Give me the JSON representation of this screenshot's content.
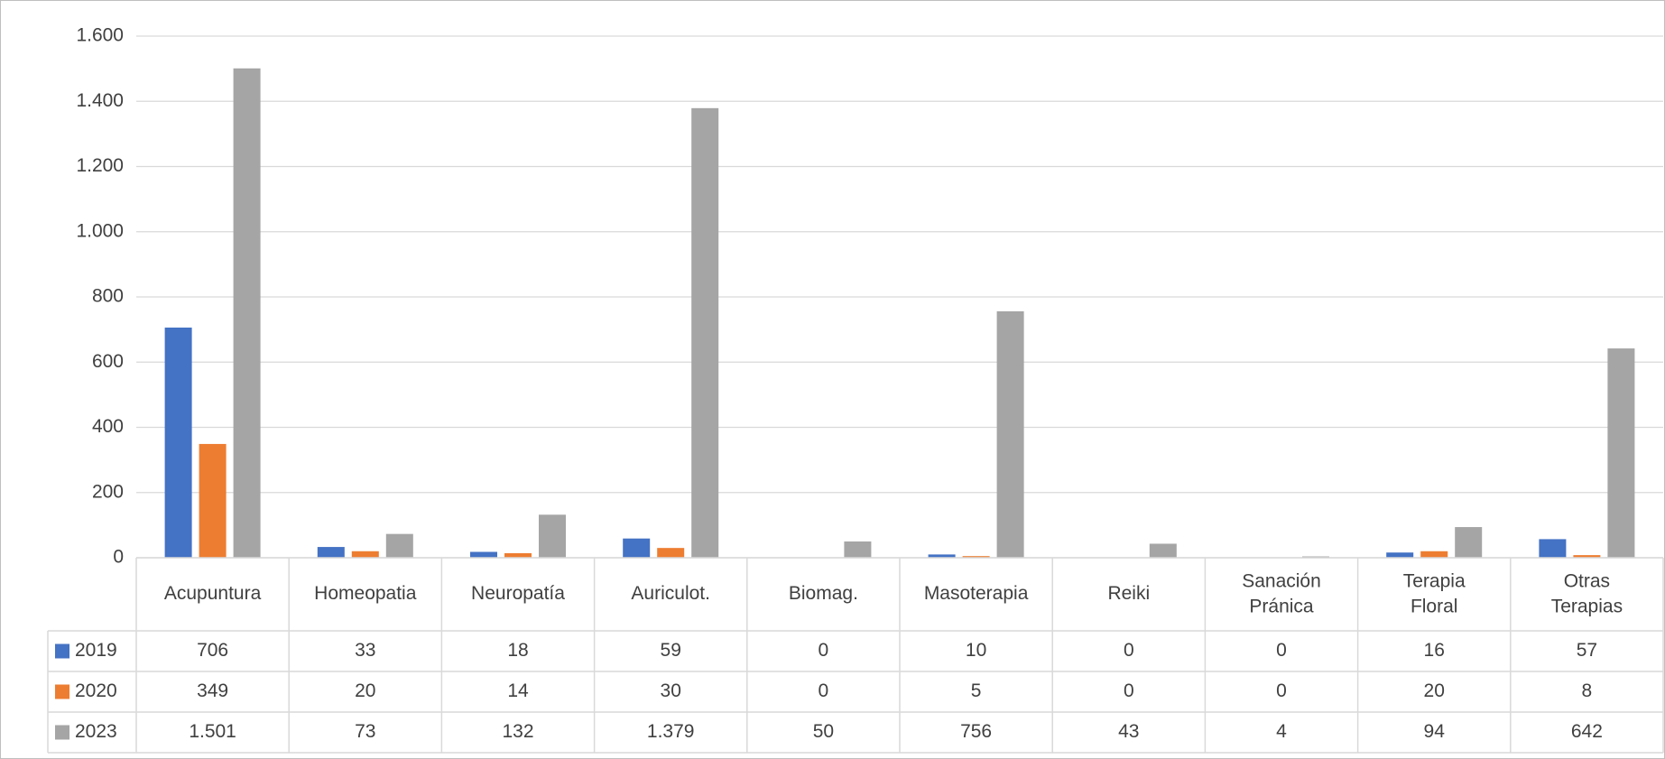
{
  "chart_data": {
    "type": "bar",
    "categories": [
      "Acupuntura",
      "Homeopatia",
      "Neuropatía",
      "Auriculot.",
      "Biomag.",
      "Masoterapia",
      "Reiki",
      "Sanación Pránica",
      "Terapia Floral",
      "Otras Terapias"
    ],
    "series": [
      {
        "name": "2019",
        "color": "#4472c4",
        "values": [
          706,
          33,
          18,
          59,
          0,
          10,
          0,
          0,
          16,
          57
        ]
      },
      {
        "name": "2020",
        "color": "#ed7d31",
        "values": [
          349,
          20,
          14,
          30,
          0,
          5,
          0,
          0,
          20,
          8
        ]
      },
      {
        "name": "2023",
        "color": "#a5a5a5",
        "values": [
          1501,
          73,
          132,
          1379,
          50,
          756,
          43,
          4,
          94,
          642
        ],
        "value_labels": [
          "1.501",
          "73",
          "132",
          "1.379",
          "50",
          "756",
          "43",
          "4",
          "94",
          "642"
        ]
      }
    ],
    "ylim": [
      0,
      1600
    ],
    "yticks": [
      0,
      200,
      400,
      600,
      800,
      {
        "value": 1000,
        "label": "1.000"
      },
      {
        "value": 1200,
        "label": "1.200"
      },
      {
        "value": 1400,
        "label": "1.400"
      },
      {
        "value": 1600,
        "label": "1.600"
      }
    ],
    "grid": true
  }
}
